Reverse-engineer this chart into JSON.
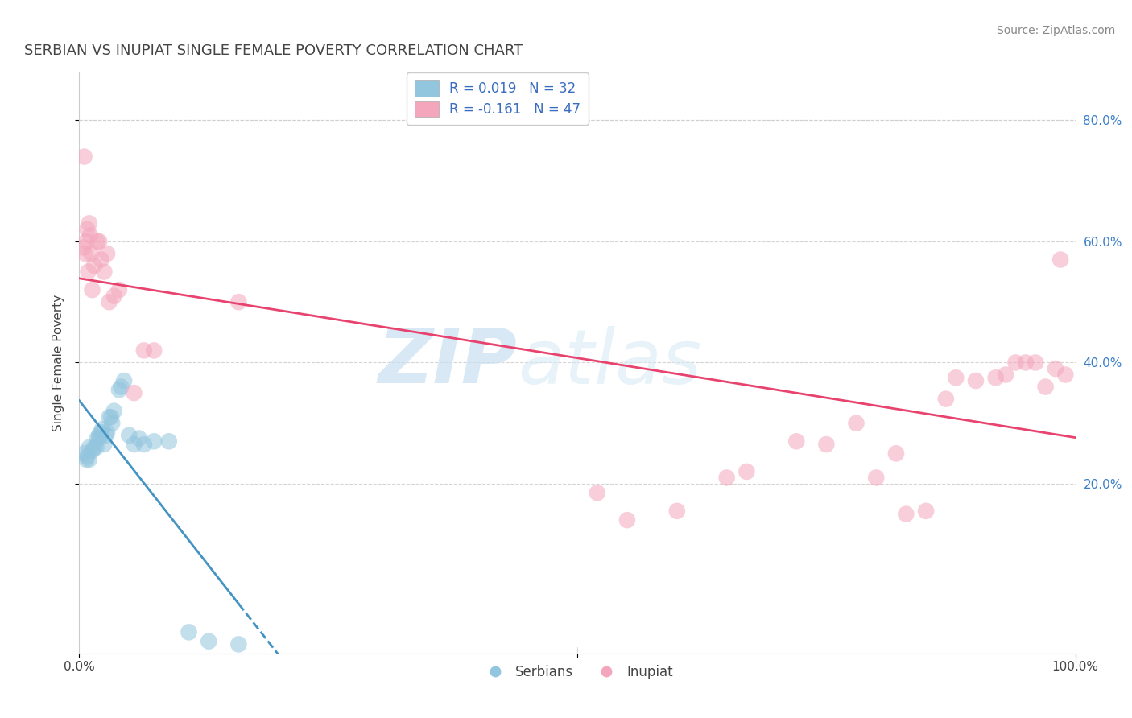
{
  "title": "SERBIAN VS INUPIAT SINGLE FEMALE POVERTY CORRELATION CHART",
  "source": "Source: ZipAtlas.com",
  "ylabel": "Single Female Poverty",
  "watermark_zip": "ZIP",
  "watermark_atlas": "atlas",
  "legend_serbian": "R = 0.019   N = 32",
  "legend_inupiat": "R = -0.161   N = 47",
  "serbian_color": "#92c5de",
  "inupiat_color": "#f4a6bc",
  "serbian_line_color": "#4393c3",
  "inupiat_line_color": "#e8436e",
  "xlim": [
    0.0,
    1.0
  ],
  "ylim": [
    -0.08,
    0.88
  ],
  "xticks": [
    0.0,
    0.5,
    1.0
  ],
  "xtick_labels": [
    "0.0%",
    "",
    "100.0%"
  ],
  "yticks": [
    0.2,
    0.4,
    0.6,
    0.8
  ],
  "ytick_labels": [
    "20.0%",
    "40.0%",
    "60.0%",
    "80.0%"
  ],
  "serbian_x": [
    0.005,
    0.007,
    0.008,
    0.01,
    0.01,
    0.013,
    0.015,
    0.017,
    0.018,
    0.02,
    0.02,
    0.022,
    0.023,
    0.025,
    0.027,
    0.028,
    0.03,
    0.032,
    0.033,
    0.035,
    0.04,
    0.042,
    0.045,
    0.05,
    0.055,
    0.06,
    0.065,
    0.075,
    0.09,
    0.11,
    0.13,
    0.16
  ],
  "serbian_y": [
    0.25,
    0.24,
    0.245,
    0.24,
    0.26,
    0.255,
    0.26,
    0.26,
    0.275,
    0.275,
    0.28,
    0.285,
    0.29,
    0.265,
    0.28,
    0.285,
    0.31,
    0.31,
    0.3,
    0.32,
    0.355,
    0.36,
    0.37,
    0.28,
    0.265,
    0.275,
    0.265,
    0.27,
    0.27,
    -0.045,
    -0.06,
    -0.065
  ],
  "inupiat_x": [
    0.004,
    0.005,
    0.006,
    0.007,
    0.008,
    0.009,
    0.01,
    0.011,
    0.012,
    0.013,
    0.015,
    0.018,
    0.02,
    0.022,
    0.025,
    0.028,
    0.03,
    0.035,
    0.04,
    0.055,
    0.065,
    0.075,
    0.16,
    0.52,
    0.55,
    0.6,
    0.65,
    0.67,
    0.72,
    0.75,
    0.78,
    0.8,
    0.82,
    0.83,
    0.85,
    0.87,
    0.88,
    0.9,
    0.92,
    0.93,
    0.94,
    0.95,
    0.96,
    0.97,
    0.98,
    0.985,
    0.99
  ],
  "inupiat_y": [
    0.59,
    0.74,
    0.58,
    0.6,
    0.62,
    0.55,
    0.63,
    0.61,
    0.58,
    0.52,
    0.56,
    0.6,
    0.6,
    0.57,
    0.55,
    0.58,
    0.5,
    0.51,
    0.52,
    0.35,
    0.42,
    0.42,
    0.5,
    0.185,
    0.14,
    0.155,
    0.21,
    0.22,
    0.27,
    0.265,
    0.3,
    0.21,
    0.25,
    0.15,
    0.155,
    0.34,
    0.375,
    0.37,
    0.375,
    0.38,
    0.4,
    0.4,
    0.4,
    0.36,
    0.39,
    0.57,
    0.38
  ],
  "background_color": "#ffffff",
  "grid_color": "#d0d0d0"
}
